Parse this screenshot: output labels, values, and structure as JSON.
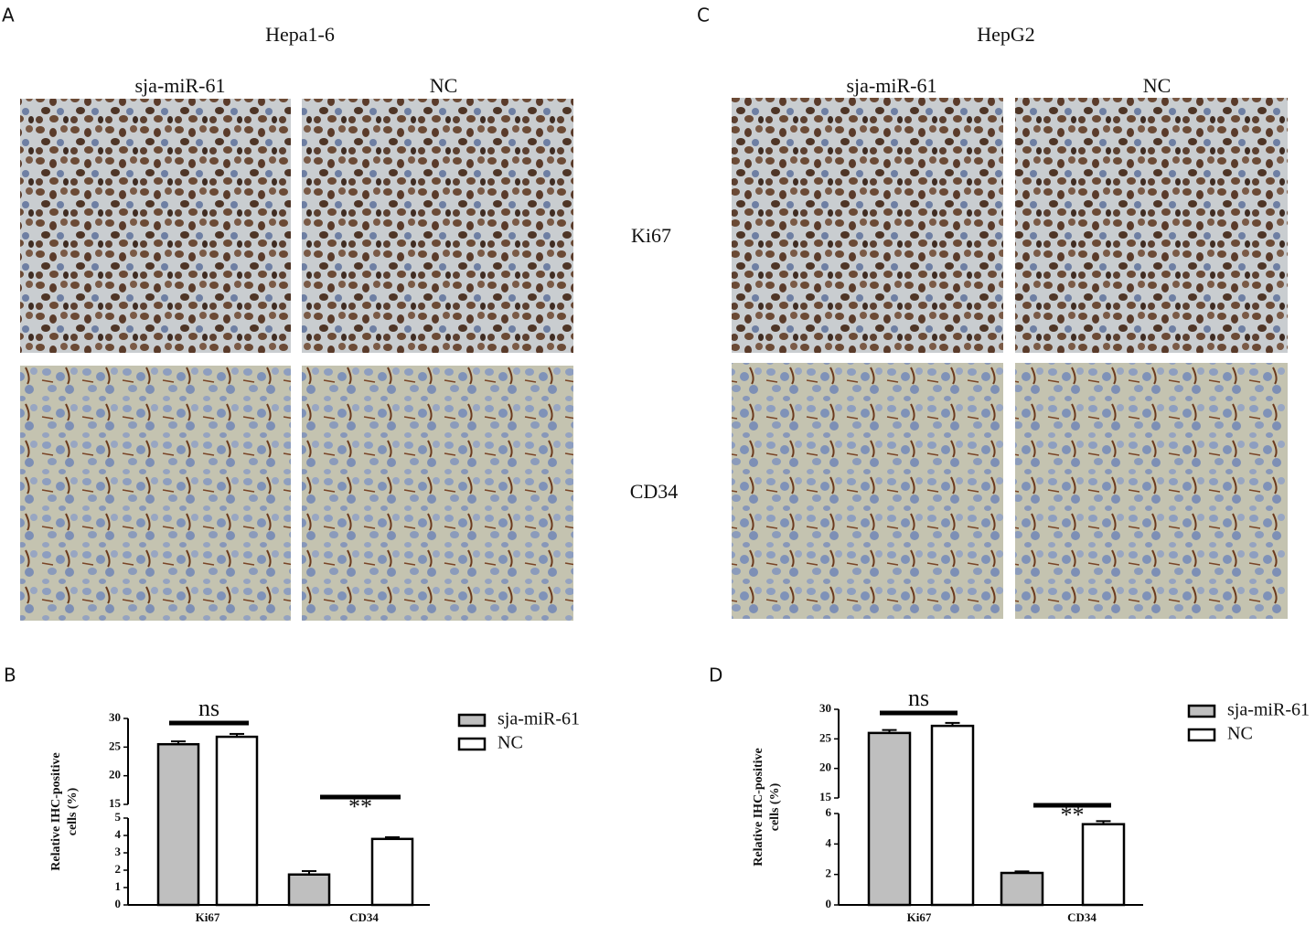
{
  "panels": {
    "A": {
      "label": "A",
      "title": "Hepa1-6",
      "columns": [
        "sja-miR-61",
        "NC"
      ]
    },
    "C": {
      "label": "C",
      "title": "HepG2",
      "columns": [
        "sja-miR-61",
        "NC"
      ]
    },
    "rows": [
      "Ki67",
      "CD34"
    ],
    "B": {
      "label": "B"
    },
    "D": {
      "label": "D"
    }
  },
  "chart_data": [
    {
      "type": "bar",
      "ylabel": [
        "Relative IHC-positive",
        "cells (%)"
      ],
      "categories": [
        "Ki67",
        "CD34"
      ],
      "series": [
        {
          "name": "sja-miR-61",
          "color": "#bfbfbf",
          "values": [
            25.5,
            1.75
          ],
          "errors": [
            0.5,
            0.2
          ]
        },
        {
          "name": "NC",
          "color": "#ffffff",
          "values": [
            26.8,
            3.8
          ],
          "errors": [
            0.5,
            0.1
          ]
        }
      ],
      "ylim": [
        0,
        30
      ],
      "axis_break": [
        5,
        15
      ],
      "yticks": [
        0,
        1,
        2,
        3,
        4,
        5,
        15,
        20,
        25,
        30
      ],
      "annotations": [
        "ns",
        "**"
      ]
    },
    {
      "type": "bar",
      "ylabel": [
        "Relative IHC-positive",
        "cells (%)"
      ],
      "categories": [
        "Ki67",
        "CD34"
      ],
      "series": [
        {
          "name": "sja-miR-61",
          "color": "#bfbfbf",
          "values": [
            26,
            2.1
          ],
          "errors": [
            0.5,
            0.1
          ]
        },
        {
          "name": "NC",
          "color": "#ffffff",
          "values": [
            27.2,
            5.3
          ],
          "errors": [
            0.5,
            0.2
          ]
        }
      ],
      "ylim": [
        0,
        30
      ],
      "axis_break": [
        6,
        15
      ],
      "yticks": [
        0,
        2,
        4,
        6,
        15,
        20,
        25,
        30
      ],
      "annotations": [
        "ns",
        "**"
      ]
    }
  ]
}
